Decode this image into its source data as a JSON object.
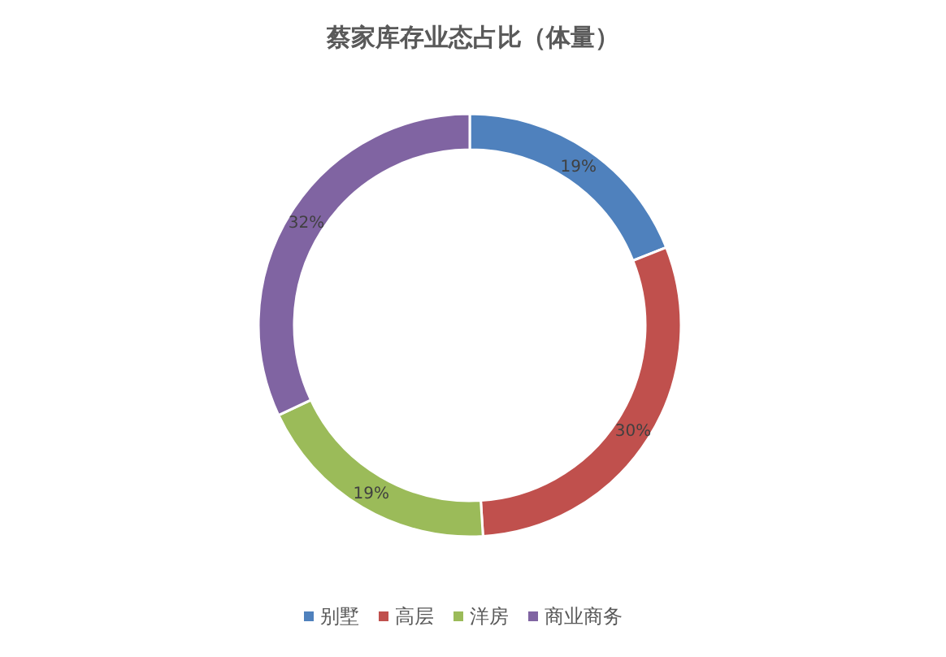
{
  "chart_data": {
    "type": "donut",
    "title": "蔡家库存业态占比（体量）",
    "categories": [
      "别墅",
      "高层",
      "洋房",
      "商业商务"
    ],
    "values": [
      19,
      30,
      19,
      32
    ],
    "value_labels": [
      "19%",
      "30%",
      "19%",
      "32%"
    ],
    "colors": [
      "#4f81bd",
      "#c0504d",
      "#9bbb59",
      "#8064a2"
    ],
    "legend": "bottom"
  }
}
